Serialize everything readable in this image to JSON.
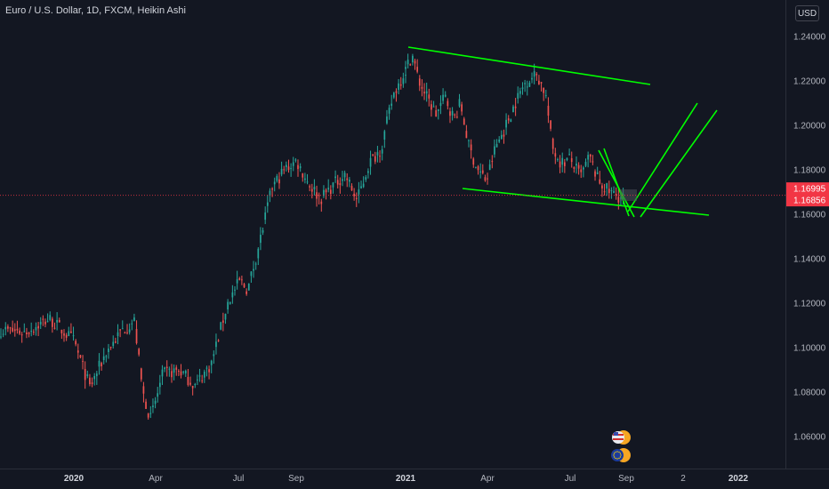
{
  "header": {
    "title": "Euro / U.S. Dollar, 1D, FXCM, Heikin Ashi",
    "currency_button": "USD"
  },
  "colors": {
    "background": "#131722",
    "up_candle": "#26a69a",
    "down_candle": "#ef5350",
    "trendline": "#00ff00",
    "price_tag": "#f23645",
    "axis_text": "#b2b5be"
  },
  "chart_data": {
    "type": "candlestick",
    "symbol": "Euro / U.S. Dollar",
    "interval": "1D",
    "source": "FXCM",
    "style": "Heikin Ashi",
    "ylim": [
      1.05,
      1.245
    ],
    "y_ticks": [
      "1.24000",
      "1.22000",
      "1.20000",
      "1.18000",
      "1.16000",
      "1.14000",
      "1.12000",
      "1.10000",
      "1.08000",
      "1.06000"
    ],
    "x_ticks": [
      {
        "label": "2020",
        "bold": true
      },
      {
        "label": "Apr",
        "bold": false
      },
      {
        "label": "Jul",
        "bold": false
      },
      {
        "label": "Sep",
        "bold": false
      },
      {
        "label": "2021",
        "bold": true
      },
      {
        "label": "Apr",
        "bold": false
      },
      {
        "label": "Jul",
        "bold": false
      },
      {
        "label": "Sep",
        "bold": false
      },
      {
        "label": "2",
        "bold": false
      },
      {
        "label": "2022",
        "bold": true
      }
    ],
    "price_tags": [
      "1.16995",
      "1.16856"
    ],
    "current_price": 1.16856,
    "price_path_keypoints": [
      [
        0.0,
        1.108
      ],
      [
        0.06,
        1.107
      ],
      [
        0.12,
        1.113
      ],
      [
        0.18,
        1.103
      ],
      [
        0.22,
        1.082
      ],
      [
        0.26,
        1.098
      ],
      [
        0.3,
        1.108
      ],
      [
        0.33,
        1.112
      ],
      [
        0.35,
        1.08
      ],
      [
        0.37,
        1.068
      ],
      [
        0.4,
        1.088
      ],
      [
        0.44,
        1.09
      ],
      [
        0.48,
        1.083
      ],
      [
        0.52,
        1.093
      ],
      [
        0.56,
        1.12
      ],
      [
        0.59,
        1.13
      ],
      [
        0.61,
        1.126
      ],
      [
        0.64,
        1.148
      ],
      [
        0.67,
        1.172
      ],
      [
        0.7,
        1.18
      ],
      [
        0.73,
        1.184
      ],
      [
        0.76,
        1.174
      ],
      [
        0.79,
        1.167
      ],
      [
        0.82,
        1.173
      ],
      [
        0.85,
        1.178
      ],
      [
        0.88,
        1.166
      ],
      [
        0.91,
        1.183
      ],
      [
        0.94,
        1.19
      ],
      [
        0.97,
        1.214
      ],
      [
        1.0,
        1.225
      ]
    ],
    "price_path_keypoints_2021": [
      [
        0.0,
        1.225
      ],
      [
        0.03,
        1.232
      ],
      [
        0.06,
        1.22
      ],
      [
        0.1,
        1.212
      ],
      [
        0.14,
        1.205
      ],
      [
        0.18,
        1.213
      ],
      [
        0.22,
        1.203
      ],
      [
        0.25,
        1.21
      ],
      [
        0.29,
        1.19
      ],
      [
        0.33,
        1.18
      ],
      [
        0.37,
        1.175
      ],
      [
        0.41,
        1.19
      ],
      [
        0.45,
        1.198
      ],
      [
        0.5,
        1.21
      ],
      [
        0.55,
        1.22
      ],
      [
        0.6,
        1.223
      ],
      [
        0.64,
        1.214
      ],
      [
        0.67,
        1.19
      ],
      [
        0.71,
        1.183
      ],
      [
        0.75,
        1.185
      ],
      [
        0.8,
        1.177
      ],
      [
        0.84,
        1.186
      ],
      [
        0.88,
        1.175
      ],
      [
        0.93,
        1.17
      ],
      [
        1.0,
        1.167
      ]
    ]
  }
}
